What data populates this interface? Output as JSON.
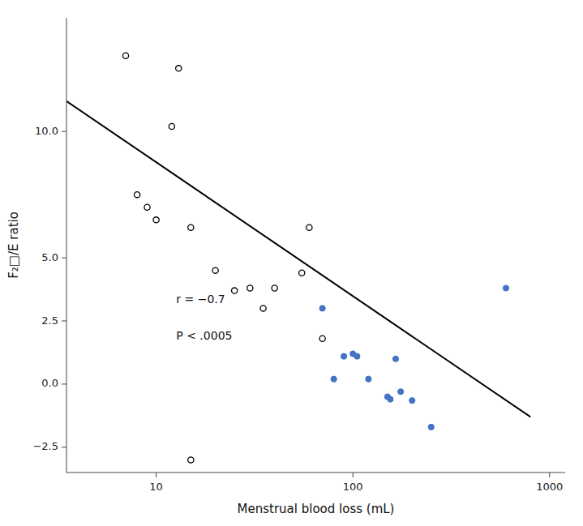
{
  "chart_data": {
    "type": "scatter",
    "xlabel": "Menstrual blood loss (mL)",
    "ylabel": "F₂□/E ratio",
    "annotations": [
      "r = −0.7",
      "P < .0005"
    ],
    "log": "x",
    "grid": false,
    "xlim": [
      3.5,
      1200
    ],
    "ylim": [
      -3.5,
      14.5
    ],
    "xticks": [
      10,
      100,
      1000
    ],
    "yticks": [
      {
        "value": -2.5,
        "label": "−2.5"
      },
      {
        "value": 0,
        "label": "0.0"
      },
      2.5,
      {
        "value": 5.0,
        "label": "5.0"
      },
      {
        "value": 10.0,
        "label": "10.0"
      }
    ],
    "series": [
      {
        "type": "scatter",
        "marker": "open-circle",
        "color": "#000000",
        "x": [
          7,
          8,
          9,
          10,
          12,
          13,
          15,
          20,
          25,
          30,
          35,
          40,
          55,
          60,
          70
        ],
        "values": [
          13.0,
          7.5,
          7.0,
          6.5,
          10.2,
          12.5,
          6.2,
          4.5,
          3.7,
          3.8,
          3.0,
          3.8,
          4.4,
          6.2,
          1.8
        ]
      },
      {
        "type": "scatter",
        "marker": "open-circle",
        "color": "#000000",
        "x": [
          15
        ],
        "values": [
          -3.0
        ]
      },
      {
        "type": "scatter",
        "marker": "circle",
        "color": "#4472c4",
        "x": [
          70,
          80,
          90,
          100,
          105,
          120,
          150,
          155,
          165,
          175,
          200,
          250,
          600
        ],
        "values": [
          3.0,
          0.2,
          1.1,
          1.2,
          1.1,
          0.2,
          -0.5,
          -0.6,
          1.0,
          -0.3,
          -0.65,
          -1.7,
          3.8
        ]
      },
      {
        "type": "line",
        "color": "#000000",
        "x": [
          3.5,
          800
        ],
        "values": [
          11.2,
          -1.3
        ]
      }
    ]
  }
}
